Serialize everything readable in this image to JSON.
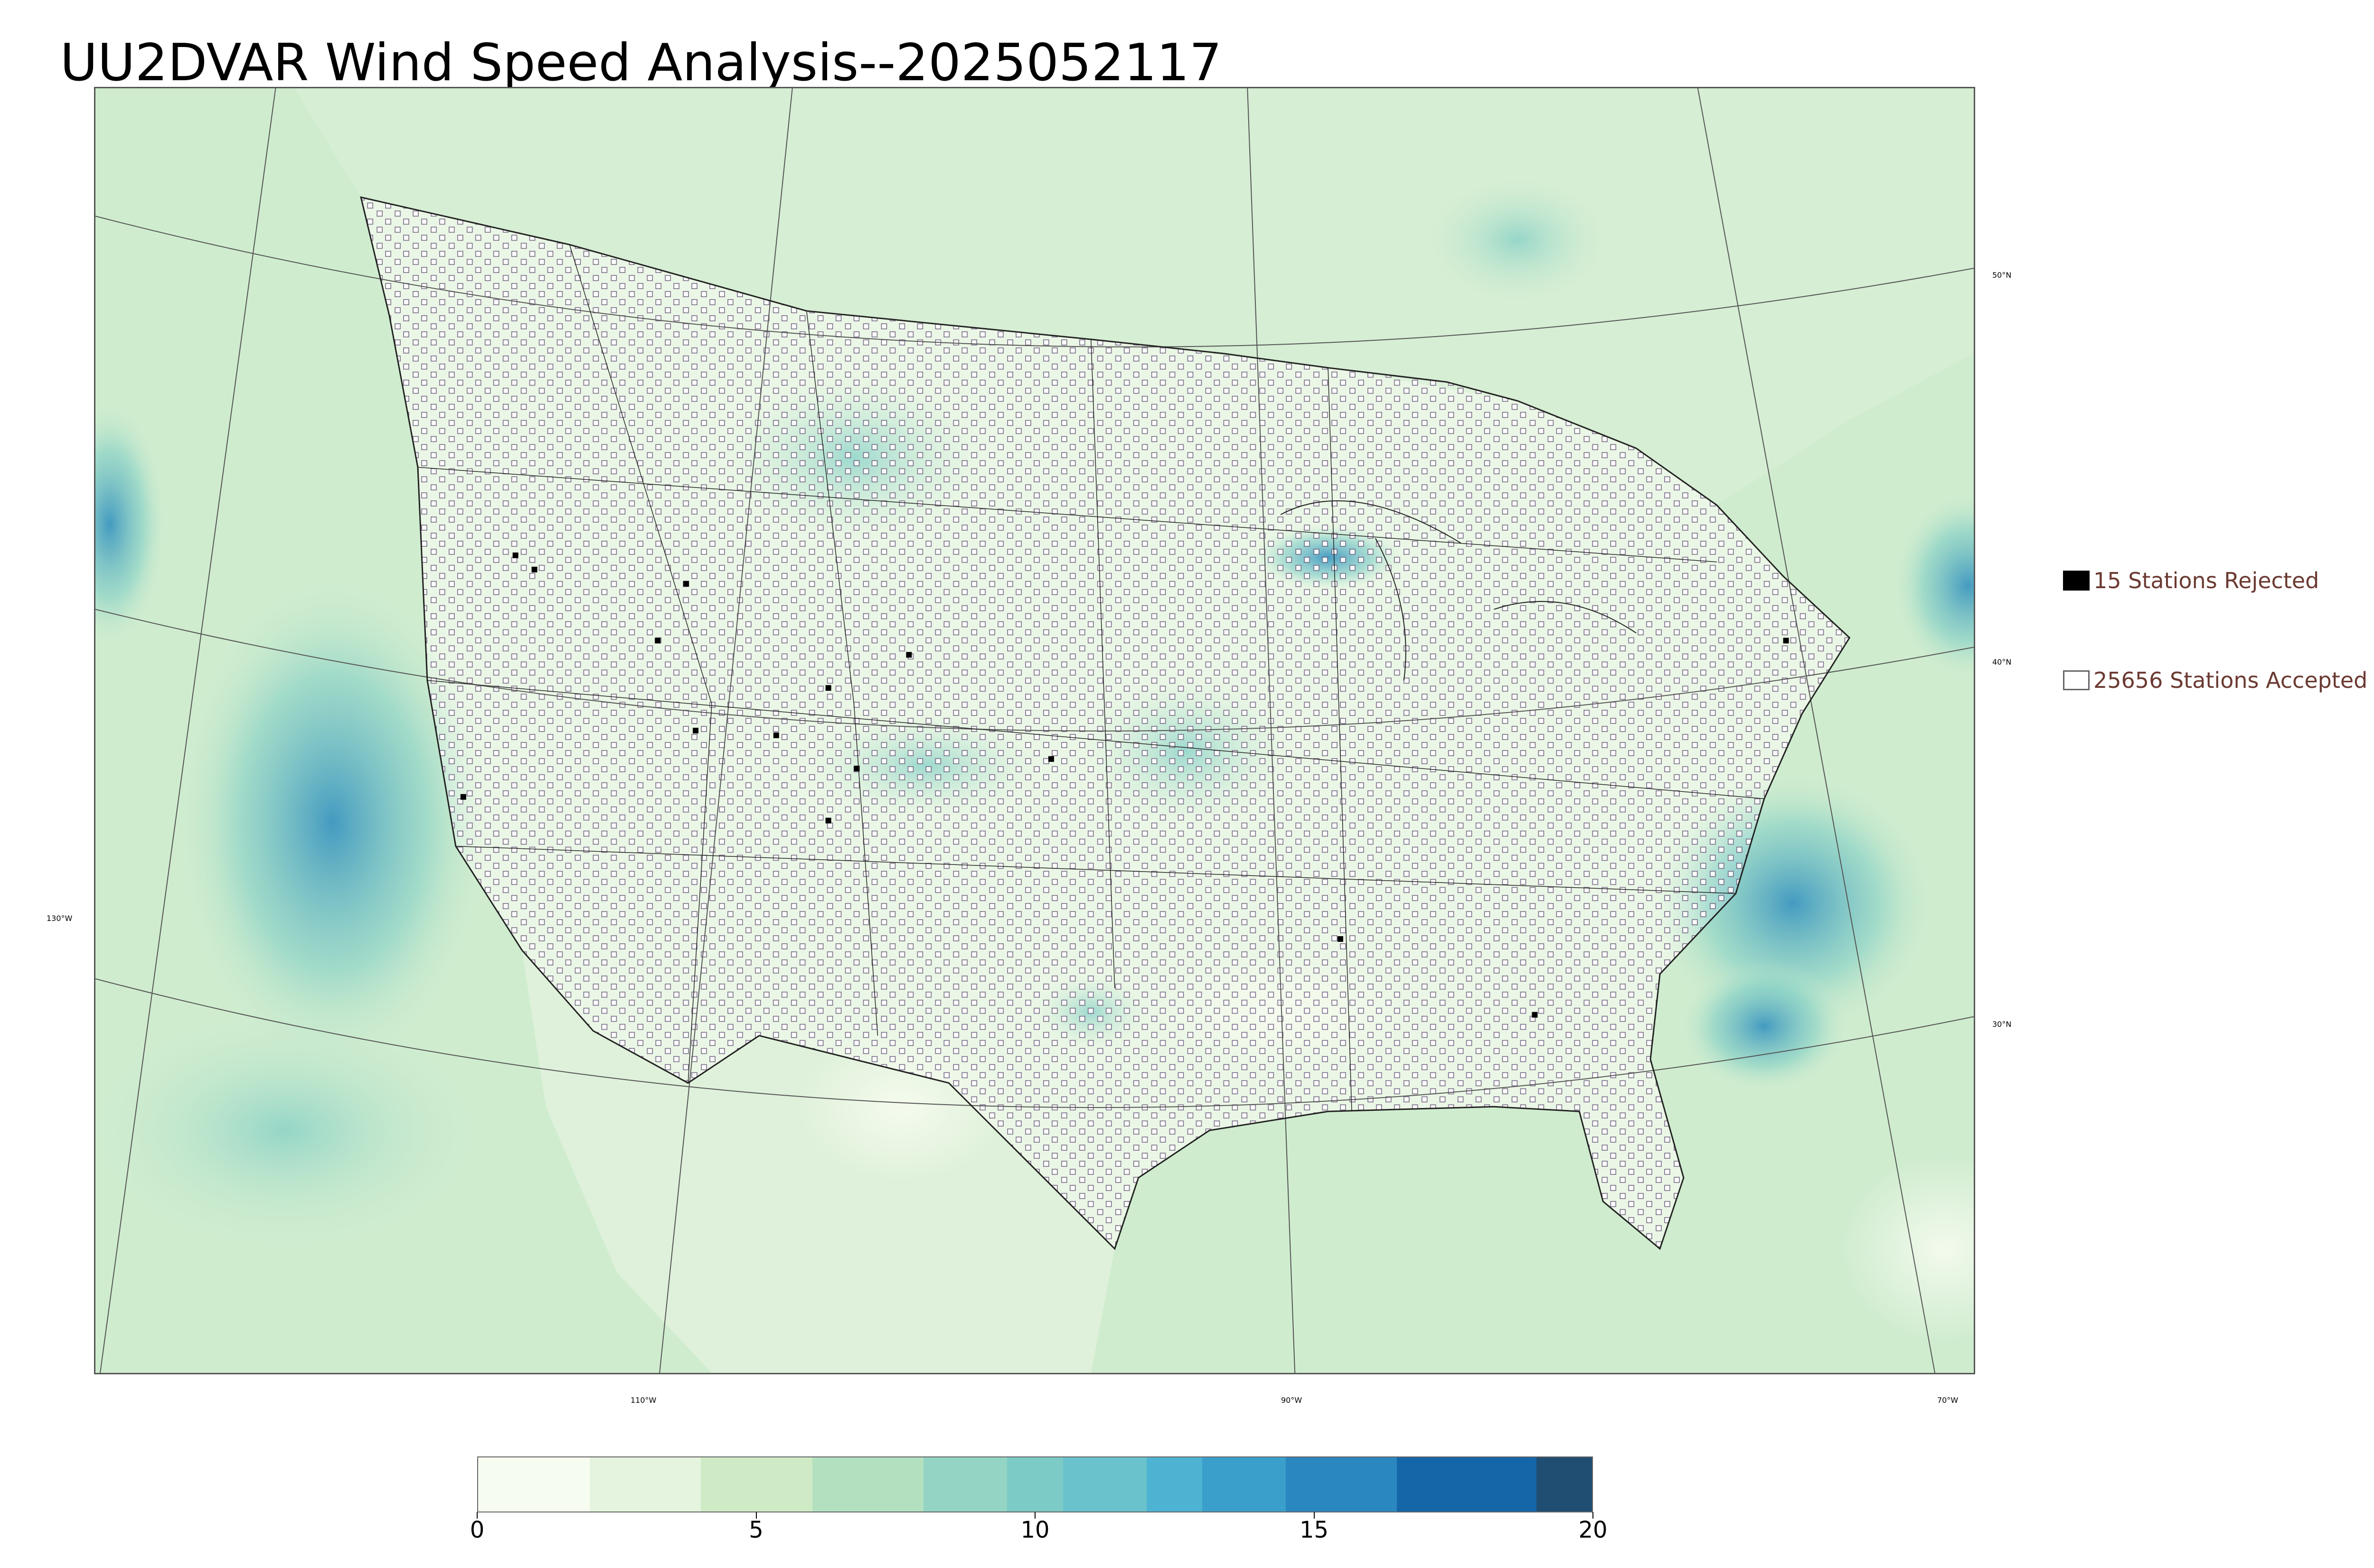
{
  "title": "UU2DVAR Wind Speed Analysis--2025052117",
  "map": {
    "colors": {
      "land_base": "#eaf6e3",
      "ocean_base": "#cdeccf",
      "boundary": "#222222",
      "grid": "#555555",
      "station_accepted_fill": "#ffffff",
      "station_accepted_stroke": "#6a5a7a",
      "station_rejected": "#000000",
      "high_wind": "#2b8cbe",
      "medium_wind": "#7bccc4"
    },
    "lat_labels": [
      "50°N",
      "40°N",
      "30°N"
    ],
    "lon_labels": [
      "130°W",
      "110°W",
      "90°W",
      "70°W"
    ]
  },
  "legend": {
    "rejected": {
      "label": "15 Stations Rejected",
      "color": "#000000"
    },
    "accepted": {
      "label": "25656 Stations Accepted",
      "color": "#ffffff"
    }
  },
  "colorbar": {
    "ticks": [
      "0",
      "5",
      "10",
      "15",
      "20"
    ],
    "min": 0,
    "max": 20,
    "segments": [
      {
        "from": 0,
        "to": 2,
        "color": "#f7fcf0"
      },
      {
        "from": 2,
        "to": 4,
        "color": "#e4f4de"
      },
      {
        "from": 4,
        "to": 6,
        "color": "#cfebc6"
      },
      {
        "from": 6,
        "to": 8,
        "color": "#b3e1c0"
      },
      {
        "from": 8,
        "to": 9.5,
        "color": "#93d4c4"
      },
      {
        "from": 9.5,
        "to": 10.5,
        "color": "#7dcbc6"
      },
      {
        "from": 10.5,
        "to": 12,
        "color": "#6ac2cc"
      },
      {
        "from": 12,
        "to": 13,
        "color": "#4eb3d3"
      },
      {
        "from": 13,
        "to": 14.5,
        "color": "#3a9fcb"
      },
      {
        "from": 14.5,
        "to": 16.5,
        "color": "#2b87bf"
      },
      {
        "from": 16.5,
        "to": 19,
        "color": "#1466a8"
      },
      {
        "from": 19,
        "to": 20,
        "color": "#1f4e72"
      }
    ]
  }
}
